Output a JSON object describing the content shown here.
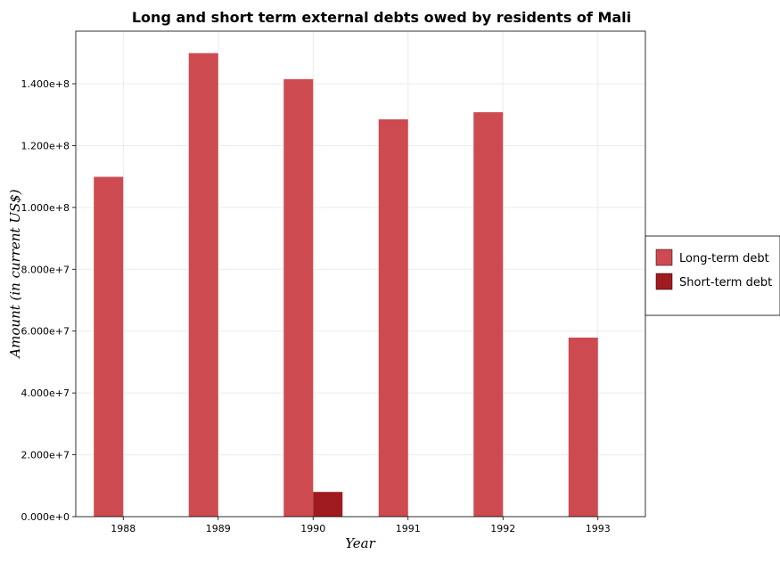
{
  "chart_data": {
    "type": "bar",
    "title": "Long and short term external debts owed by residents of Mali",
    "xlabel": "Year",
    "ylabel": "Amount (in current US$)",
    "categories": [
      "1988",
      "1989",
      "1990",
      "1991",
      "1992",
      "1993"
    ],
    "series": [
      {
        "name": "Long-term debt",
        "color": "#cd4b50",
        "values": [
          109900000,
          149900000,
          141500000,
          128500000,
          130800000,
          57900000
        ]
      },
      {
        "name": "Short-term debt",
        "color": "#a01b1f",
        "values": [
          0,
          0,
          8000000,
          0,
          0,
          0
        ]
      }
    ],
    "yticks": [
      0,
      20000000,
      40000000,
      60000000,
      80000000,
      100000000,
      120000000,
      140000000
    ],
    "ytick_labels": [
      "0.000e+0",
      "2.000e+7",
      "4.000e+7",
      "6.000e+7",
      "8.000e+7",
      "1.000e+8",
      "1.200e+8",
      "1.400e+8"
    ],
    "ylim": [
      0,
      157000000
    ],
    "grid": true,
    "legend": "right"
  }
}
